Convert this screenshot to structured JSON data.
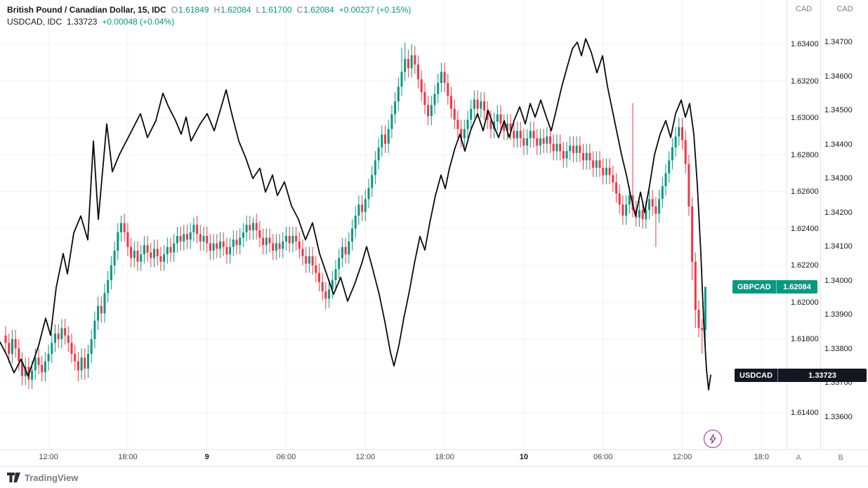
{
  "header": {
    "line1": {
      "title": "British Pound / Canadian Dollar, 15, IDC",
      "ohlc": [
        {
          "k": "O",
          "v": "1.61849"
        },
        {
          "k": "H",
          "v": "1.62084"
        },
        {
          "k": "L",
          "v": "1.61700"
        },
        {
          "k": "C",
          "v": "1.62084"
        }
      ],
      "change": "+0.00237 (+0.15%)"
    },
    "line2": {
      "title": "USDCAD, IDC",
      "value": "1.33723",
      "change": "+0.00048 (+0.04%)"
    }
  },
  "axes": {
    "a": {
      "header": "CAD",
      "button": "A",
      "ticks": [
        "1.63400",
        "1.63200",
        "1.63000",
        "1.62800",
        "1.62600",
        "1.62400",
        "1.62200",
        "1.62000",
        "1.61800",
        "1.61600",
        "1.61400"
      ]
    },
    "b": {
      "header": "CAD",
      "button": "B",
      "ticks": [
        "1.34700",
        "1.34600",
        "1.34500",
        "1.34400",
        "1.34300",
        "1.34200",
        "1.34100",
        "1.34000",
        "1.33900",
        "1.33800",
        "1.33700",
        "1.33600"
      ]
    }
  },
  "time_axis": {
    "labels": [
      {
        "text": "12:00",
        "i": 13,
        "major": false
      },
      {
        "text": "18:00",
        "i": 37,
        "major": false
      },
      {
        "text": "9",
        "i": 61,
        "major": true
      },
      {
        "text": "06:00",
        "i": 85,
        "major": false
      },
      {
        "text": "12:00",
        "i": 109,
        "major": false
      },
      {
        "text": "18:00",
        "i": 133,
        "major": false
      },
      {
        "text": "10",
        "i": 157,
        "major": true
      },
      {
        "text": "06:00",
        "i": 181,
        "major": false
      },
      {
        "text": "12:00",
        "i": 205,
        "major": false
      },
      {
        "text": "18:0",
        "i": 229,
        "major": false
      }
    ]
  },
  "badges": {
    "gbpcad": {
      "label": "GBPCAD",
      "value": "1.62084"
    },
    "usdcad": {
      "label": "USDCAD",
      "value": "1.33723"
    }
  },
  "footer": {
    "brand": "TradingView"
  },
  "icons": {
    "flash": "lightning-bolt"
  },
  "colors": {
    "up": "#089981",
    "down": "#f23645",
    "line": "#0a0a0a",
    "grid": "rgba(42,46,57,0.06)",
    "border": "#e0e3eb",
    "flash": "#9c27b0",
    "gbpcad_badge": "#089981",
    "usdcad_badge": "#131722"
  },
  "chart_data": [
    {
      "type": "candlestick",
      "name": "GBPCAD",
      "title": "British Pound / Canadian Dollar, 15, IDC",
      "timeframe_minutes": 15,
      "scale": "A",
      "ylabel": "CAD",
      "ylim": [
        1.614,
        1.634
      ],
      "grid": true,
      "last": 1.62084,
      "first_open": 1.6182,
      "default_wick": 0.0005,
      "closes": [
        1.6178,
        1.6172,
        1.618,
        1.6175,
        1.6168,
        1.616,
        1.6165,
        1.6158,
        1.6163,
        1.617,
        1.6166,
        1.6162,
        1.6168,
        1.6172,
        1.6178,
        1.6183,
        1.618,
        1.6186,
        1.6182,
        1.6178,
        1.6172,
        1.6168,
        1.6163,
        1.617,
        1.6164,
        1.6172,
        1.618,
        1.619,
        1.6198,
        1.6194,
        1.6205,
        1.6212,
        1.622,
        1.6228,
        1.6238,
        1.6243,
        1.6238,
        1.623,
        1.6224,
        1.6228,
        1.6222,
        1.6226,
        1.6231,
        1.6227,
        1.6224,
        1.6229,
        1.6225,
        1.6222,
        1.6226,
        1.623,
        1.6227,
        1.6232,
        1.6236,
        1.6233,
        1.6237,
        1.6234,
        1.6238,
        1.6242,
        1.6237,
        1.6233,
        1.6236,
        1.6232,
        1.6228,
        1.6232,
        1.6229,
        1.6233,
        1.623,
        1.6226,
        1.623,
        1.6234,
        1.6231,
        1.6235,
        1.6238,
        1.6242,
        1.6239,
        1.6243,
        1.6239,
        1.6235,
        1.6231,
        1.6235,
        1.6232,
        1.6228,
        1.6232,
        1.6229,
        1.6233,
        1.6236,
        1.6232,
        1.6236,
        1.6233,
        1.6229,
        1.6225,
        1.6221,
        1.6225,
        1.622,
        1.6216,
        1.6211,
        1.6206,
        1.6202,
        1.6207,
        1.6212,
        1.6218,
        1.6224,
        1.623,
        1.6226,
        1.6233,
        1.624,
        1.6247,
        1.6253,
        1.6249,
        1.6256,
        1.6262,
        1.6269,
        1.6277,
        1.6284,
        1.6291,
        1.6286,
        1.6294,
        1.6302,
        1.6309,
        1.6317,
        1.6325,
        1.6332,
        1.6327,
        1.6334,
        1.6329,
        1.6321,
        1.6314,
        1.6307,
        1.6301,
        1.6307,
        1.6313,
        1.6319,
        1.6325,
        1.6319,
        1.6312,
        1.6305,
        1.6299,
        1.6294,
        1.6289,
        1.6294,
        1.6299,
        1.6305,
        1.631,
        1.6305,
        1.6309,
        1.6304,
        1.6299,
        1.6294,
        1.6298,
        1.6302,
        1.6297,
        1.6293,
        1.6297,
        1.6293,
        1.6289,
        1.6293,
        1.6289,
        1.6285,
        1.6289,
        1.6293,
        1.6289,
        1.6285,
        1.6289,
        1.6286,
        1.629,
        1.6286,
        1.6282,
        1.6286,
        1.6282,
        1.6278,
        1.6282,
        1.6285,
        1.6281,
        1.6285,
        1.6281,
        1.6277,
        1.6281,
        1.6277,
        1.6273,
        1.6277,
        1.6273,
        1.6269,
        1.6273,
        1.6269,
        1.6265,
        1.6259,
        1.6253,
        1.6247,
        1.6253,
        1.6258,
        1.625,
        1.6246,
        1.625,
        1.6245,
        1.625,
        1.6256,
        1.6252,
        1.6248,
        1.6256,
        1.6263,
        1.627,
        1.6277,
        1.6284,
        1.629,
        1.6295,
        1.6288,
        1.6275,
        1.6252,
        1.6222,
        1.6196,
        1.6186,
        1.61849,
        1.62084
      ],
      "wick_overrides": {
        "22": {
          "l": 1.6157
        },
        "24": {
          "l": 1.6158
        },
        "35": {
          "h": 1.6247
        },
        "57": {
          "h": 1.6246
        },
        "75": {
          "h": 1.6246
        },
        "97": {
          "l": 1.6196
        },
        "120": {
          "h": 1.6338
        },
        "121": {
          "h": 1.6341
        },
        "123": {
          "h": 1.634
        },
        "190": {
          "h": 1.6308,
          "l": 1.6246
        },
        "197": {
          "l": 1.623
        },
        "204": {
          "h": 1.63
        },
        "208": {
          "l": 1.6212
        },
        "209": {
          "l": 1.6186
        },
        "211": {
          "l": 1.6172
        },
        "212": {
          "h": 1.62084,
          "l": 1.617
        }
      }
    },
    {
      "type": "line",
      "name": "USDCAD",
      "title": "USDCAD, IDC",
      "scale": "B",
      "ylabel": "CAD",
      "ylim": [
        1.336,
        1.347
      ],
      "last": 1.33723,
      "points": [
        [
          0,
          1.3382
        ],
        [
          10,
          1.3378
        ],
        [
          20,
          1.3373
        ],
        [
          30,
          1.3377
        ],
        [
          40,
          1.3372
        ],
        [
          55,
          1.3381
        ],
        [
          65,
          1.3389
        ],
        [
          72,
          1.3384
        ],
        [
          80,
          1.3398
        ],
        [
          90,
          1.3408
        ],
        [
          96,
          1.3402
        ],
        [
          105,
          1.3414
        ],
        [
          115,
          1.3419
        ],
        [
          125,
          1.3412
        ],
        [
          133,
          1.3441
        ],
        [
          140,
          1.3418
        ],
        [
          152,
          1.3446
        ],
        [
          160,
          1.3432
        ],
        [
          170,
          1.3437
        ],
        [
          180,
          1.3441
        ],
        [
          190,
          1.3445
        ],
        [
          200,
          1.3449
        ],
        [
          210,
          1.3442
        ],
        [
          222,
          1.3447
        ],
        [
          232,
          1.3455
        ],
        [
          240,
          1.3451
        ],
        [
          250,
          1.3447
        ],
        [
          258,
          1.3443
        ],
        [
          265,
          1.3448
        ],
        [
          272,
          1.3441
        ],
        [
          285,
          1.3446
        ],
        [
          295,
          1.3449
        ],
        [
          305,
          1.3444
        ],
        [
          315,
          1.3451
        ],
        [
          322,
          1.3456
        ],
        [
          330,
          1.3449
        ],
        [
          340,
          1.3441
        ],
        [
          350,
          1.3436
        ],
        [
          360,
          1.343
        ],
        [
          370,
          1.3433
        ],
        [
          378,
          1.3426
        ],
        [
          388,
          1.3431
        ],
        [
          395,
          1.3425
        ],
        [
          405,
          1.3429
        ],
        [
          415,
          1.3422
        ],
        [
          425,
          1.3418
        ],
        [
          435,
          1.3412
        ],
        [
          445,
          1.3417
        ],
        [
          455,
          1.3408
        ],
        [
          465,
          1.3402
        ],
        [
          475,
          1.3396
        ],
        [
          485,
          1.3401
        ],
        [
          495,
          1.3394
        ],
        [
          505,
          1.3399
        ],
        [
          515,
          1.3405
        ],
        [
          522,
          1.341
        ],
        [
          530,
          1.3404
        ],
        [
          540,
          1.3396
        ],
        [
          548,
          1.3388
        ],
        [
          556,
          1.3379
        ],
        [
          561,
          1.3375
        ],
        [
          568,
          1.3381
        ],
        [
          575,
          1.3389
        ],
        [
          583,
          1.3397
        ],
        [
          590,
          1.3405
        ],
        [
          598,
          1.3413
        ],
        [
          605,
          1.3409
        ],
        [
          612,
          1.3417
        ],
        [
          620,
          1.3425
        ],
        [
          628,
          1.3431
        ],
        [
          634,
          1.3427
        ],
        [
          640,
          1.3433
        ],
        [
          648,
          1.3439
        ],
        [
          655,
          1.3443
        ],
        [
          662,
          1.3438
        ],
        [
          670,
          1.3444
        ],
        [
          680,
          1.3449
        ],
        [
          688,
          1.3444
        ],
        [
          695,
          1.345
        ],
        [
          702,
          1.3446
        ],
        [
          710,
          1.3442
        ],
        [
          718,
          1.3447
        ],
        [
          725,
          1.3442
        ],
        [
          732,
          1.3447
        ],
        [
          740,
          1.3451
        ],
        [
          748,
          1.3446
        ],
        [
          755,
          1.3452
        ],
        [
          762,
          1.3448
        ],
        [
          770,
          1.3453
        ],
        [
          778,
          1.3448
        ],
        [
          785,
          1.3444
        ],
        [
          792,
          1.345
        ],
        [
          800,
          1.3457
        ],
        [
          808,
          1.3463
        ],
        [
          815,
          1.3468
        ],
        [
          822,
          1.347
        ],
        [
          828,
          1.3466
        ],
        [
          834,
          1.3471
        ],
        [
          842,
          1.3467
        ],
        [
          850,
          1.3461
        ],
        [
          858,
          1.3466
        ],
        [
          865,
          1.3457
        ],
        [
          872,
          1.345
        ],
        [
          878,
          1.3444
        ],
        [
          885,
          1.3437
        ],
        [
          892,
          1.3431
        ],
        [
          898,
          1.3425
        ],
        [
          905,
          1.3419
        ],
        [
          912,
          1.3426
        ],
        [
          918,
          1.342
        ],
        [
          925,
          1.3428
        ],
        [
          932,
          1.3437
        ],
        [
          940,
          1.3443
        ],
        [
          948,
          1.3447
        ],
        [
          955,
          1.3442
        ],
        [
          962,
          1.3449
        ],
        [
          970,
          1.3453
        ],
        [
          976,
          1.3448
        ],
        [
          982,
          1.3452
        ],
        [
          988,
          1.3443
        ],
        [
          993,
          1.3428
        ],
        [
          998,
          1.3408
        ],
        [
          1002,
          1.3388
        ],
        [
          1006,
          1.3374
        ],
        [
          1009,
          1.3368
        ],
        [
          1012,
          1.33723
        ]
      ]
    }
  ]
}
